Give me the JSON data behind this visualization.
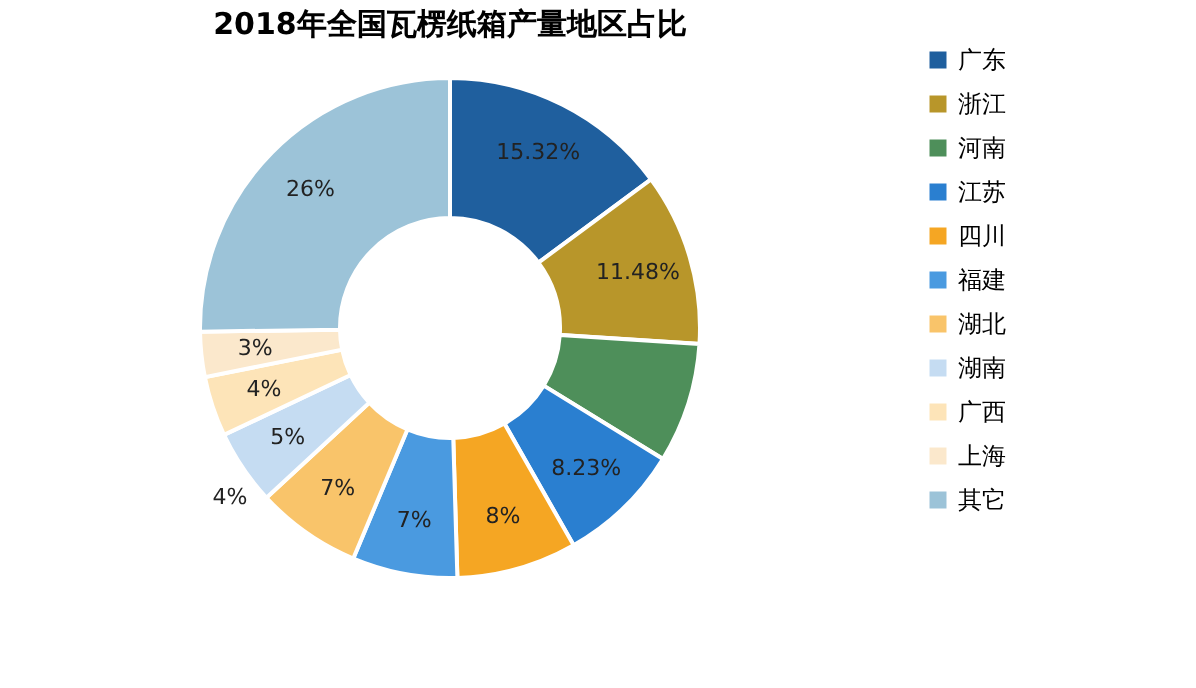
{
  "chart_data": {
    "type": "donut",
    "title": "2018年全国瓦楞纸箱产量地区占比",
    "categories": [
      "广东",
      "浙江",
      "河南",
      "江苏",
      "四川",
      "福建",
      "湖北",
      "湖南",
      "广西",
      "上海",
      "其它"
    ],
    "values": [
      15.32,
      11.48,
      8,
      8.23,
      8,
      7,
      7,
      5,
      4,
      3,
      26
    ],
    "value_labels": [
      "15.32%",
      "11.48%",
      null,
      "8.23%",
      "8%",
      "7%",
      "7%",
      "5%",
      "4%",
      "3%",
      "26%"
    ],
    "colors": [
      "#1f5f9e",
      "#b8962a",
      "#4e8f5a",
      "#2a7fd0",
      "#f5a623",
      "#4a9ae0",
      "#f9c46a",
      "#c5dcf2",
      "#fde4b8",
      "#fbe8cc",
      "#9cc3d8"
    ],
    "annotations": [
      "4%"
    ],
    "legend": "right"
  }
}
